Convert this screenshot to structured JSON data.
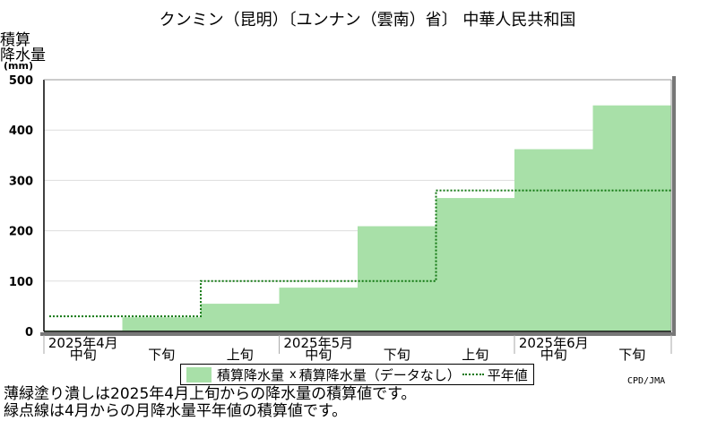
{
  "chart_data": {
    "type": "bar",
    "title": "クンミン（昆明）〔ユンナン（雲南）省〕 中華人民共和国",
    "ylabel": [
      "積算",
      "降水量",
      "(mm)"
    ],
    "ylim": [
      0,
      500
    ],
    "yticks": [
      0,
      100,
      200,
      300,
      400,
      500
    ],
    "categories": [
      "中旬",
      "下旬",
      "上旬",
      "中旬",
      "下旬",
      "上旬",
      "中旬",
      "下旬"
    ],
    "month_labels": [
      {
        "label": "2025年4月",
        "col": 0
      },
      {
        "label": "2025年5月",
        "col": 3
      },
      {
        "label": "2025年6月",
        "col": 6
      }
    ],
    "series": [
      {
        "name": "積算降水量",
        "type": "area",
        "values": [
          2,
          28,
          55,
          87,
          209,
          265,
          362,
          449
        ],
        "color": "#a8e0a8"
      },
      {
        "name": "平年値",
        "type": "step-dotted",
        "values": [
          30,
          30,
          100,
          100,
          100,
          280,
          280,
          280
        ],
        "color": "#117711"
      }
    ],
    "legend": {
      "items": [
        "積算降水量",
        "積算降水量（データなし）",
        "平年値"
      ],
      "marker": "x",
      "position": "bottom"
    },
    "grid": true
  },
  "credit": "CPD/JMA",
  "notes": [
    "薄緑塗り潰しは2025年4月上旬からの降水量の積算値です。",
    "緑点線は4月からの月降水量平年値の積算値です。"
  ]
}
